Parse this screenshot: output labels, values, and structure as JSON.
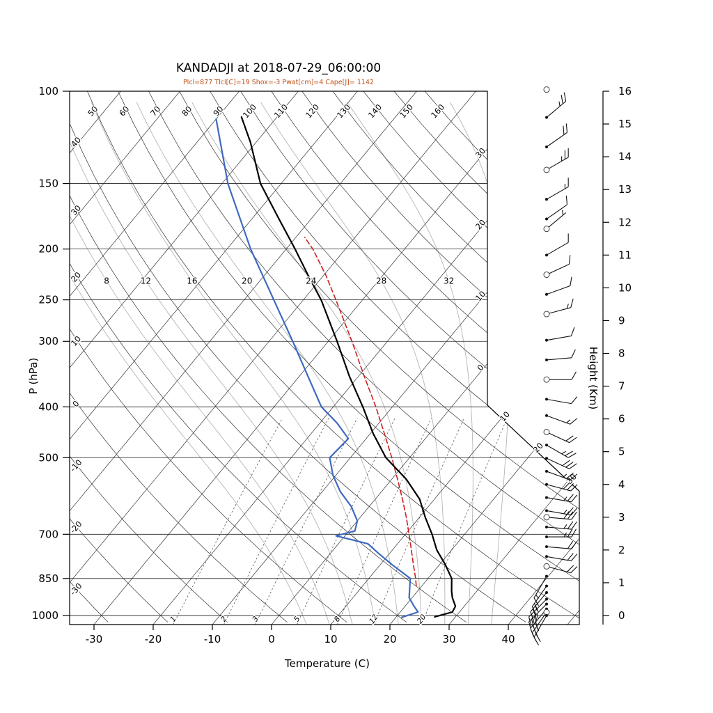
{
  "chart_data": {
    "type": "line",
    "chart_kind": "skew-t-log-p-sounding",
    "title": "KANDADJI at 2018-07-29_06:00:00",
    "subtitle": "Plcl=877 Tlcl[C]=19 Shox=-3 Pwat[cm]=4 Cape[J]= 1142",
    "subtitle_color": "#c05018",
    "station": "KANDADJI",
    "time": "2018-07-29_06:00:00",
    "parameters": {
      "Plcl_hPa": 877,
      "Tlcl_C": 19,
      "Showalter_index": -3,
      "Pwat_cm": 4,
      "Cape_J": 1142
    },
    "xlabel": "Temperature (C)",
    "ylabel": "P (hPa)",
    "y2label": "Height (Km)",
    "pressure_ticks_hpa": [
      100,
      150,
      200,
      250,
      300,
      400,
      500,
      700,
      850,
      1000
    ],
    "temperature_ticks_c": [
      -30,
      -20,
      -10,
      0,
      10,
      20,
      30,
      40
    ],
    "height_ticks_km": [
      0,
      1,
      2,
      3,
      4,
      5,
      6,
      7,
      8,
      9,
      10,
      11,
      12,
      13,
      14,
      15,
      16
    ],
    "isotherms": {
      "min_c": -110,
      "max_c": 50,
      "step_c": 10
    },
    "dry_adiabats": {
      "min_theta_c": -30,
      "max_theta_c": 160,
      "step_c": 10,
      "top_labels": [
        50,
        60,
        70,
        80,
        90,
        100,
        110,
        120,
        130,
        140,
        150,
        160
      ],
      "left_labels": [
        40,
        30,
        20,
        10,
        0,
        -10,
        -20,
        -30
      ]
    },
    "right_edge_isotherm_labels": [
      {
        "value_c": -30,
        "text": "30"
      },
      {
        "value_c": -20,
        "text": "20"
      },
      {
        "value_c": -10,
        "text": "10"
      },
      {
        "value_c": 0,
        "text": "0"
      },
      {
        "value_c": 10,
        "text": "10"
      },
      {
        "value_c": 20,
        "text": "20"
      },
      {
        "value_c": 30,
        "text": "30"
      }
    ],
    "moist_adiabats": {
      "thetaw_values_c": [
        4,
        8,
        12,
        16,
        20,
        24,
        28,
        32,
        36
      ],
      "labeled_values_c": [
        8,
        12,
        16,
        20,
        24,
        28,
        32
      ],
      "label_pressure_hpa": 230
    },
    "mixing_ratio_lines_g_kg": [
      1,
      2,
      3,
      5,
      8,
      12,
      20
    ],
    "temperature_profile": {
      "color": "#000000",
      "points_p_t": [
        [
          1006,
          26.5
        ],
        [
          985,
          28.8
        ],
        [
          960,
          28.5
        ],
        [
          925,
          26.8
        ],
        [
          900,
          25.8
        ],
        [
          850,
          24
        ],
        [
          800,
          21
        ],
        [
          750,
          17.5
        ],
        [
          700,
          14.5
        ],
        [
          650,
          11
        ],
        [
          600,
          7.5
        ],
        [
          550,
          2.5
        ],
        [
          500,
          -4
        ],
        [
          450,
          -9.5
        ],
        [
          400,
          -15
        ],
        [
          350,
          -21.5
        ],
        [
          300,
          -28.5
        ],
        [
          250,
          -37
        ],
        [
          225,
          -42.5
        ],
        [
          200,
          -48.5
        ],
        [
          175,
          -55.5
        ],
        [
          150,
          -63.5
        ],
        [
          125,
          -71
        ],
        [
          112,
          -76
        ]
      ]
    },
    "dewpoint_profile": {
      "color": "#3f6abf",
      "points_p_t": [
        [
          1008,
          21
        ],
        [
          985,
          23
        ],
        [
          960,
          21.5
        ],
        [
          925,
          19.5
        ],
        [
          850,
          17
        ],
        [
          800,
          12
        ],
        [
          760,
          8
        ],
        [
          730,
          5
        ],
        [
          705,
          -1.5
        ],
        [
          690,
          1
        ],
        [
          660,
          0
        ],
        [
          620,
          -3
        ],
        [
          580,
          -7
        ],
        [
          540,
          -10.5
        ],
        [
          500,
          -13.5
        ],
        [
          460,
          -13
        ],
        [
          430,
          -17
        ],
        [
          400,
          -22
        ],
        [
          350,
          -28.5
        ],
        [
          300,
          -36
        ],
        [
          250,
          -45
        ],
        [
          200,
          -56
        ],
        [
          150,
          -69
        ],
        [
          113,
          -80
        ]
      ]
    },
    "parcel_profile": {
      "color": "#cc2020",
      "style": "dashed",
      "points_p_t": [
        [
          877,
          19
        ],
        [
          850,
          17.9
        ],
        [
          800,
          15.6
        ],
        [
          750,
          13.2
        ],
        [
          700,
          10.6
        ],
        [
          650,
          7.8
        ],
        [
          600,
          4.6
        ],
        [
          550,
          1
        ],
        [
          500,
          -3
        ],
        [
          450,
          -7.6
        ],
        [
          400,
          -12.8
        ],
        [
          350,
          -19
        ],
        [
          300,
          -26
        ],
        [
          250,
          -34.5
        ],
        [
          225,
          -39.5
        ],
        [
          200,
          -45.5
        ],
        [
          190,
          -48.5
        ]
      ]
    },
    "wind_barbs": {
      "position": "right-column",
      "levels": [
        [
          16.05,
          0,
          0,
          "c"
        ],
        [
          15.2,
          50,
          25,
          "d"
        ],
        [
          14.3,
          55,
          20,
          "d"
        ],
        [
          13.6,
          60,
          25,
          "c"
        ],
        [
          12.7,
          60,
          15,
          "d"
        ],
        [
          12.1,
          55,
          10,
          "d"
        ],
        [
          11.8,
          50,
          5,
          "c"
        ],
        [
          11.0,
          60,
          10,
          "d"
        ],
        [
          10.4,
          65,
          10,
          "c"
        ],
        [
          9.8,
          70,
          10,
          "d"
        ],
        [
          9.2,
          75,
          15,
          "c"
        ],
        [
          8.4,
          80,
          10,
          "d"
        ],
        [
          7.8,
          85,
          10,
          "d"
        ],
        [
          7.2,
          90,
          10,
          "c"
        ],
        [
          6.6,
          100,
          10,
          "d"
        ],
        [
          6.1,
          110,
          15,
          "d"
        ],
        [
          5.6,
          115,
          20,
          "c"
        ],
        [
          5.2,
          120,
          25,
          "d"
        ],
        [
          4.8,
          115,
          30,
          "d"
        ],
        [
          4.4,
          110,
          25,
          "d"
        ],
        [
          4.0,
          105,
          30,
          "d"
        ],
        [
          3.6,
          100,
          25,
          "d"
        ],
        [
          3.2,
          100,
          25,
          "d"
        ],
        [
          3.0,
          95,
          30,
          "c"
        ],
        [
          2.7,
          95,
          25,
          "d"
        ],
        [
          2.4,
          90,
          25,
          "d"
        ],
        [
          2.1,
          95,
          20,
          "d"
        ],
        [
          1.8,
          100,
          20,
          "d"
        ],
        [
          1.5,
          105,
          20,
          "c"
        ],
        [
          1.2,
          210,
          15,
          "d"
        ],
        [
          0.9,
          215,
          20,
          "d"
        ],
        [
          0.7,
          220,
          25,
          "d"
        ],
        [
          0.5,
          225,
          30,
          "d"
        ],
        [
          0.35,
          225,
          35,
          "d"
        ],
        [
          0.2,
          220,
          30,
          "d"
        ],
        [
          0.1,
          215,
          25,
          "c"
        ],
        [
          0.0,
          210,
          20,
          "d"
        ]
      ]
    }
  }
}
